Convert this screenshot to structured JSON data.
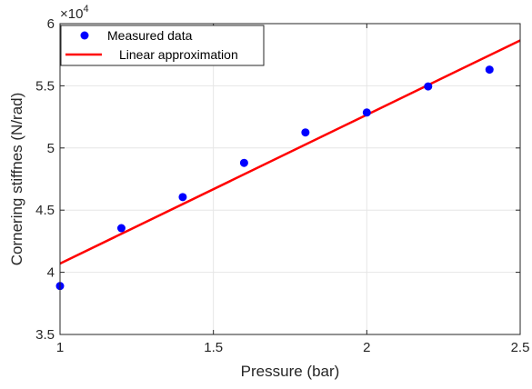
{
  "chart_data": {
    "type": "scatter",
    "title": "",
    "xlabel": "Pressure (bar)",
    "ylabel": "Cornering stiffnes (N/rad)",
    "y_multiplier_label": "×10",
    "y_multiplier_exponent": "4",
    "xlim": [
      1,
      2.5
    ],
    "ylim": [
      3.5,
      6
    ],
    "x_ticks": [
      1,
      1.5,
      2,
      2.5
    ],
    "x_tick_labels": [
      "1",
      "1.5",
      "2",
      "2.5"
    ],
    "y_ticks": [
      3.5,
      4,
      4.5,
      5,
      5.5,
      6
    ],
    "y_tick_labels": [
      "3.5",
      "4",
      "4.5",
      "5",
      "5.5",
      "6"
    ],
    "grid": true,
    "legend_position": "top-left",
    "series": [
      {
        "name": "Measured data",
        "kind": "scatter",
        "color": "#0000ff",
        "x": [
          1.0,
          1.2,
          1.4,
          1.6,
          1.8,
          2.0,
          2.2,
          2.4
        ],
        "y": [
          3.89,
          4.355,
          4.605,
          4.88,
          5.125,
          5.285,
          5.495,
          5.63
        ]
      },
      {
        "name": "Linear approximation",
        "kind": "line",
        "color": "#ff0000",
        "x": [
          1.0,
          2.5
        ],
        "y": [
          4.07,
          5.865
        ]
      }
    ]
  }
}
